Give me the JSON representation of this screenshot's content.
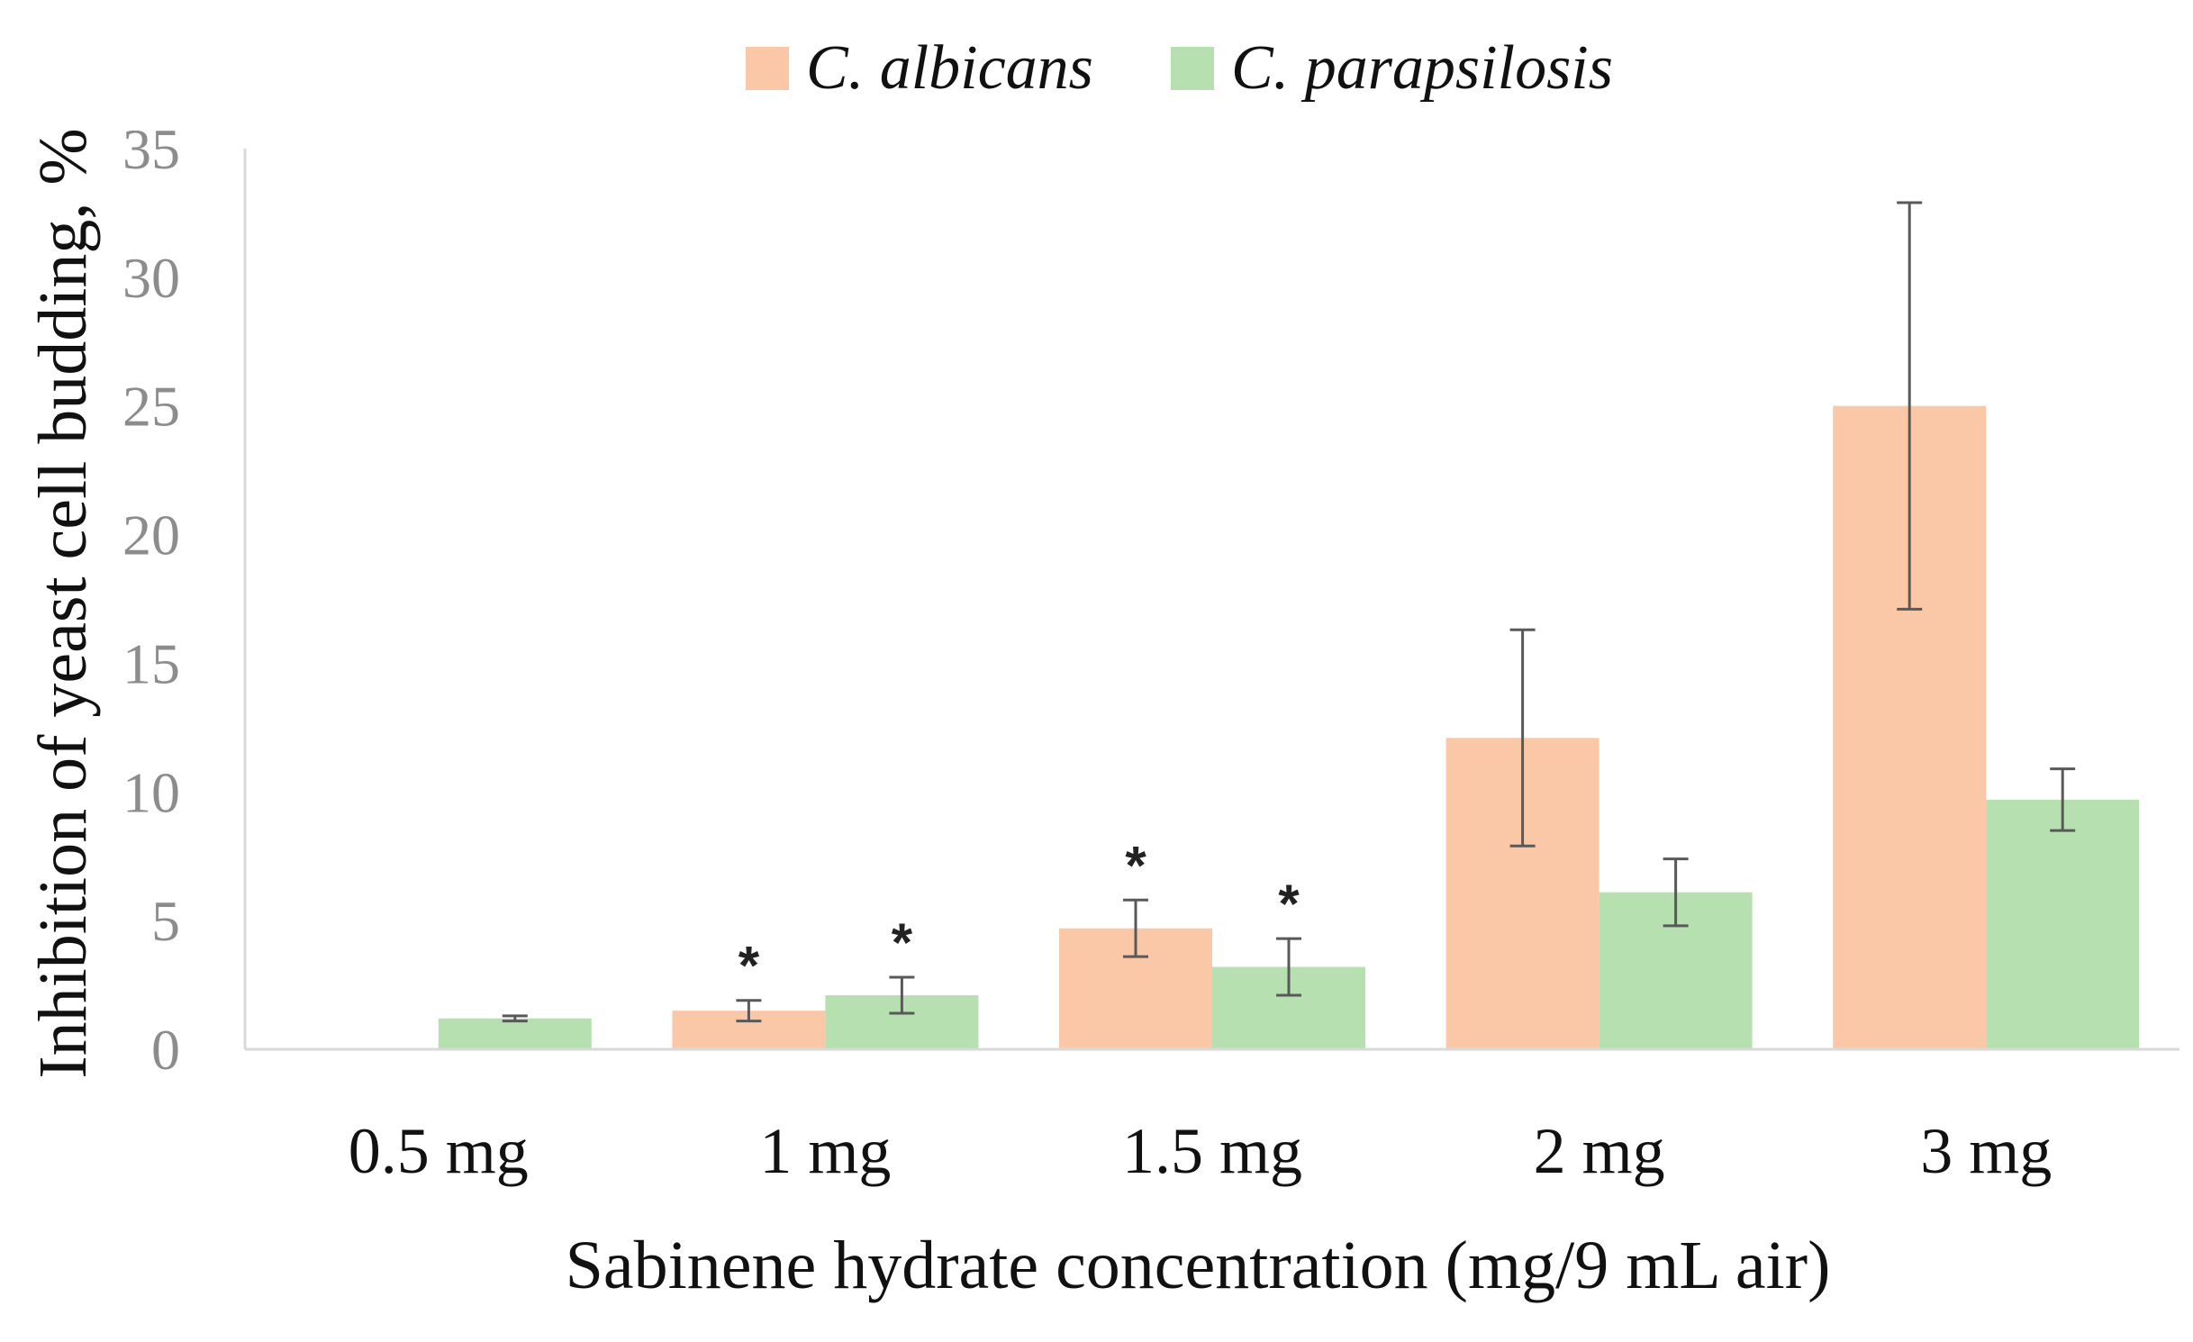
{
  "chart_data": {
    "type": "bar",
    "title": "",
    "xlabel": "Sabinene hydrate concentration (mg/9 mL air)",
    "ylabel": "Inhibition of yeast cell budding, %",
    "ylim": [
      0,
      35
    ],
    "yticks": [
      0,
      5,
      10,
      15,
      20,
      25,
      30,
      35
    ],
    "grid": false,
    "legend_position": "top-center",
    "categories": [
      "0.5 mg",
      "1 mg",
      "1.5 mg",
      "2 mg",
      "3 mg"
    ],
    "series": [
      {
        "name": "C. albicans",
        "color": "#fbc8a7",
        "values": [
          0,
          1.5,
          4.7,
          12.1,
          25.0
        ],
        "errors": [
          0,
          0.4,
          1.1,
          4.2,
          7.9
        ],
        "significance": [
          "",
          "*",
          "*",
          "",
          ""
        ]
      },
      {
        "name": "C. parapsilosis",
        "color": "#b7e0b1",
        "values": [
          1.2,
          2.1,
          3.2,
          6.1,
          9.7
        ],
        "errors": [
          0.1,
          0.7,
          1.1,
          1.3,
          1.2
        ],
        "significance": [
          "",
          "*",
          "*",
          "",
          ""
        ]
      }
    ],
    "axis_color": "#d9d9d9",
    "error_bar_color": "#595959"
  }
}
